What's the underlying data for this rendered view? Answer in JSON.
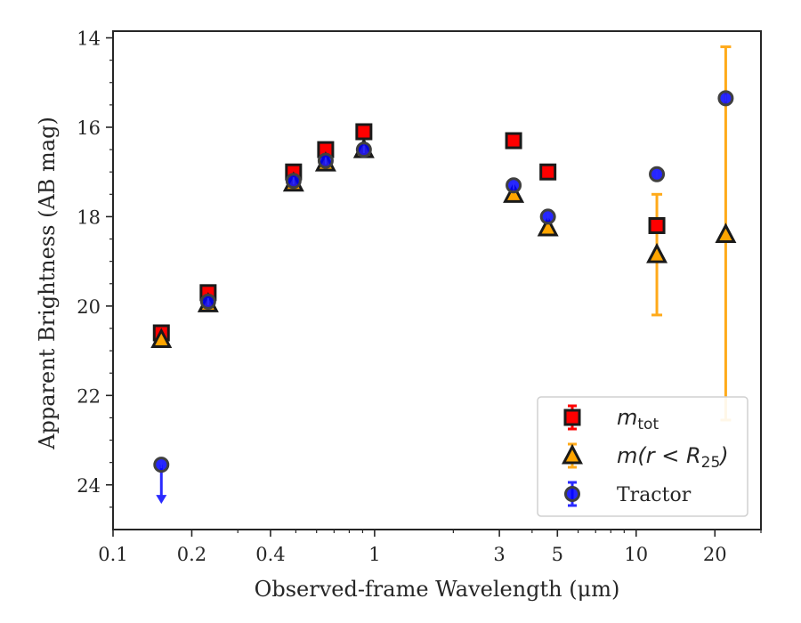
{
  "chart_data": {
    "type": "scatter",
    "xlabel": "Observed-frame Wavelength (μm)",
    "ylabel": "Apparent Brightness (AB mag)",
    "x_scale": "log",
    "xlim": [
      0.1,
      30
    ],
    "ylim": [
      25,
      13.85
    ],
    "x_ticks": [
      {
        "value": 0.1,
        "label": "0.1"
      },
      {
        "value": 0.2,
        "label": "0.2"
      },
      {
        "value": 0.4,
        "label": "0.4"
      },
      {
        "value": 1,
        "label": "1"
      },
      {
        "value": 3,
        "label": "3"
      },
      {
        "value": 5,
        "label": "5"
      },
      {
        "value": 10,
        "label": "10"
      },
      {
        "value": 20,
        "label": "20"
      }
    ],
    "y_ticks": [
      {
        "value": 14,
        "label": "14"
      },
      {
        "value": 16,
        "label": "16"
      },
      {
        "value": 18,
        "label": "18"
      },
      {
        "value": 20,
        "label": "20"
      },
      {
        "value": 22,
        "label": "22"
      },
      {
        "value": 24,
        "label": "24"
      }
    ],
    "legend_position": "lower-right",
    "series": [
      {
        "name": "tot",
        "label_prefix": "m",
        "label_sub": "tot",
        "marker": "square",
        "color": "#ff0000",
        "edge_color": "#1a1a1a",
        "error_color": "#ff0000",
        "points": [
          {
            "x": 0.153,
            "y": 20.6
          },
          {
            "x": 0.231,
            "y": 19.7
          },
          {
            "x": 0.49,
            "y": 17.0
          },
          {
            "x": 0.65,
            "y": 16.5
          },
          {
            "x": 0.91,
            "y": 16.1
          },
          {
            "x": 3.4,
            "y": 16.3
          },
          {
            "x": 4.6,
            "y": 17.0
          },
          {
            "x": 12.0,
            "y": 18.2
          }
        ]
      },
      {
        "name": "r<R25",
        "label_prefix": "m(r < R",
        "label_sub": "25",
        "label_suffix": ")",
        "marker": "triangle",
        "color": "#ffa500",
        "edge_color": "#1a1a1a",
        "error_color": "#ffaa1a",
        "points": [
          {
            "x": 0.153,
            "y": 20.75
          },
          {
            "x": 0.231,
            "y": 19.95
          },
          {
            "x": 0.49,
            "y": 17.25
          },
          {
            "x": 0.65,
            "y": 16.8
          },
          {
            "x": 0.91,
            "y": 16.5
          },
          {
            "x": 3.4,
            "y": 17.5
          },
          {
            "x": 4.6,
            "y": 18.25
          },
          {
            "x": 12.0,
            "y": 18.85,
            "err_low": 17.5,
            "err_high": 20.2
          },
          {
            "x": 22.0,
            "y": 18.4,
            "err_low": 14.2,
            "err_high": 22.55
          }
        ]
      },
      {
        "name": "Tractor",
        "label": "Tractor",
        "marker": "circle",
        "color": "#0000ff",
        "edge_color": "#404040",
        "error_color": "#2a2aff",
        "points": [
          {
            "x": 0.153,
            "y": 23.55,
            "upper_limit": true
          },
          {
            "x": 0.231,
            "y": 19.9
          },
          {
            "x": 0.49,
            "y": 17.2
          },
          {
            "x": 0.65,
            "y": 16.75
          },
          {
            "x": 0.91,
            "y": 16.5
          },
          {
            "x": 3.4,
            "y": 17.3
          },
          {
            "x": 4.6,
            "y": 18.0
          },
          {
            "x": 12.0,
            "y": 17.05
          },
          {
            "x": 22.0,
            "y": 15.35
          }
        ]
      }
    ]
  }
}
